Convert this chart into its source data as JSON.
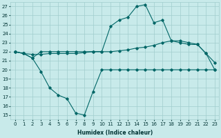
{
  "xlabel": "Humidex (Indice chaleur)",
  "bg_color": "#c8eaea",
  "line_color": "#006666",
  "grid_color": "#a0cdcd",
  "xlim": [
    -0.5,
    23.5
  ],
  "ylim": [
    14.5,
    27.5
  ],
  "yticks": [
    15,
    16,
    17,
    18,
    19,
    20,
    21,
    22,
    23,
    24,
    25,
    26,
    27
  ],
  "xticks": [
    0,
    1,
    2,
    3,
    4,
    5,
    6,
    7,
    8,
    9,
    10,
    11,
    12,
    13,
    14,
    15,
    16,
    17,
    18,
    19,
    20,
    21,
    22,
    23
  ],
  "curve_top_x": [
    0,
    1,
    2,
    3,
    4,
    5,
    6,
    7,
    8,
    9,
    10,
    11,
    12,
    13,
    14,
    15,
    16,
    17,
    18,
    19,
    20,
    21,
    22,
    23
  ],
  "curve_top_y": [
    22.0,
    21.8,
    21.3,
    22.0,
    22.0,
    22.0,
    22.0,
    22.0,
    22.0,
    22.0,
    22.0,
    24.8,
    25.5,
    25.8,
    27.0,
    27.2,
    25.2,
    25.5,
    23.2,
    23.0,
    22.8,
    22.8,
    21.8,
    20.0
  ],
  "curve_mid_x": [
    0,
    1,
    2,
    3,
    4,
    5,
    6,
    7,
    8,
    9,
    10,
    11,
    12,
    13,
    14,
    15,
    16,
    17,
    18,
    19,
    20,
    21,
    22,
    23
  ],
  "curve_mid_y": [
    22.0,
    21.8,
    21.7,
    21.7,
    21.8,
    21.8,
    21.8,
    21.8,
    21.9,
    22.0,
    22.0,
    22.0,
    22.1,
    22.2,
    22.4,
    22.5,
    22.7,
    23.0,
    23.2,
    23.2,
    23.0,
    22.8,
    21.8,
    20.8
  ],
  "curve_bot_x": [
    0,
    1,
    2,
    3,
    4,
    5,
    6,
    7,
    8,
    9,
    10,
    11,
    12,
    13,
    14,
    15,
    16,
    17,
    18,
    19,
    20,
    21,
    22,
    23
  ],
  "curve_bot_y": [
    22.0,
    21.8,
    21.3,
    19.8,
    18.0,
    17.2,
    16.8,
    15.2,
    15.0,
    17.6,
    20.0,
    20.0,
    20.0,
    20.0,
    20.0,
    20.0,
    20.0,
    20.0,
    20.0,
    20.0,
    20.0,
    20.0,
    20.0,
    20.0
  ]
}
